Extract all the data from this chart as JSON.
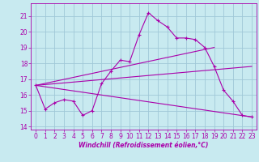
{
  "title": "",
  "xlabel": "Windchill (Refroidissement éolien,°C)",
  "ylabel": "",
  "xlim": [
    -0.5,
    23.5
  ],
  "ylim": [
    13.8,
    21.8
  ],
  "yticks": [
    14,
    15,
    16,
    17,
    18,
    19,
    20,
    21
  ],
  "xticks": [
    0,
    1,
    2,
    3,
    4,
    5,
    6,
    7,
    8,
    9,
    10,
    11,
    12,
    13,
    14,
    15,
    16,
    17,
    18,
    19,
    20,
    21,
    22,
    23
  ],
  "bg_color": "#c8eaf0",
  "grid_color": "#a0c8d8",
  "line_color": "#aa00aa",
  "series": [
    {
      "x": [
        0,
        1,
        2,
        3,
        4,
        5,
        6,
        7,
        8,
        9,
        10,
        11,
        12,
        13,
        14,
        15,
        16,
        17,
        18,
        19,
        20,
        21,
        22,
        23
      ],
      "y": [
        16.6,
        15.1,
        15.5,
        15.7,
        15.6,
        14.7,
        15.0,
        16.7,
        17.5,
        18.2,
        18.1,
        19.8,
        21.2,
        20.7,
        20.3,
        19.6,
        19.6,
        19.5,
        19.0,
        17.8,
        16.3,
        15.6,
        14.7,
        14.6
      ],
      "has_markers": true
    },
    {
      "x": [
        0,
        19
      ],
      "y": [
        16.6,
        19.0
      ],
      "has_markers": false
    },
    {
      "x": [
        0,
        23
      ],
      "y": [
        16.6,
        14.6
      ],
      "has_markers": false
    },
    {
      "x": [
        0,
        23
      ],
      "y": [
        16.6,
        17.8
      ],
      "has_markers": false
    }
  ],
  "tick_fontsize": 5.5,
  "xlabel_fontsize": 5.5
}
